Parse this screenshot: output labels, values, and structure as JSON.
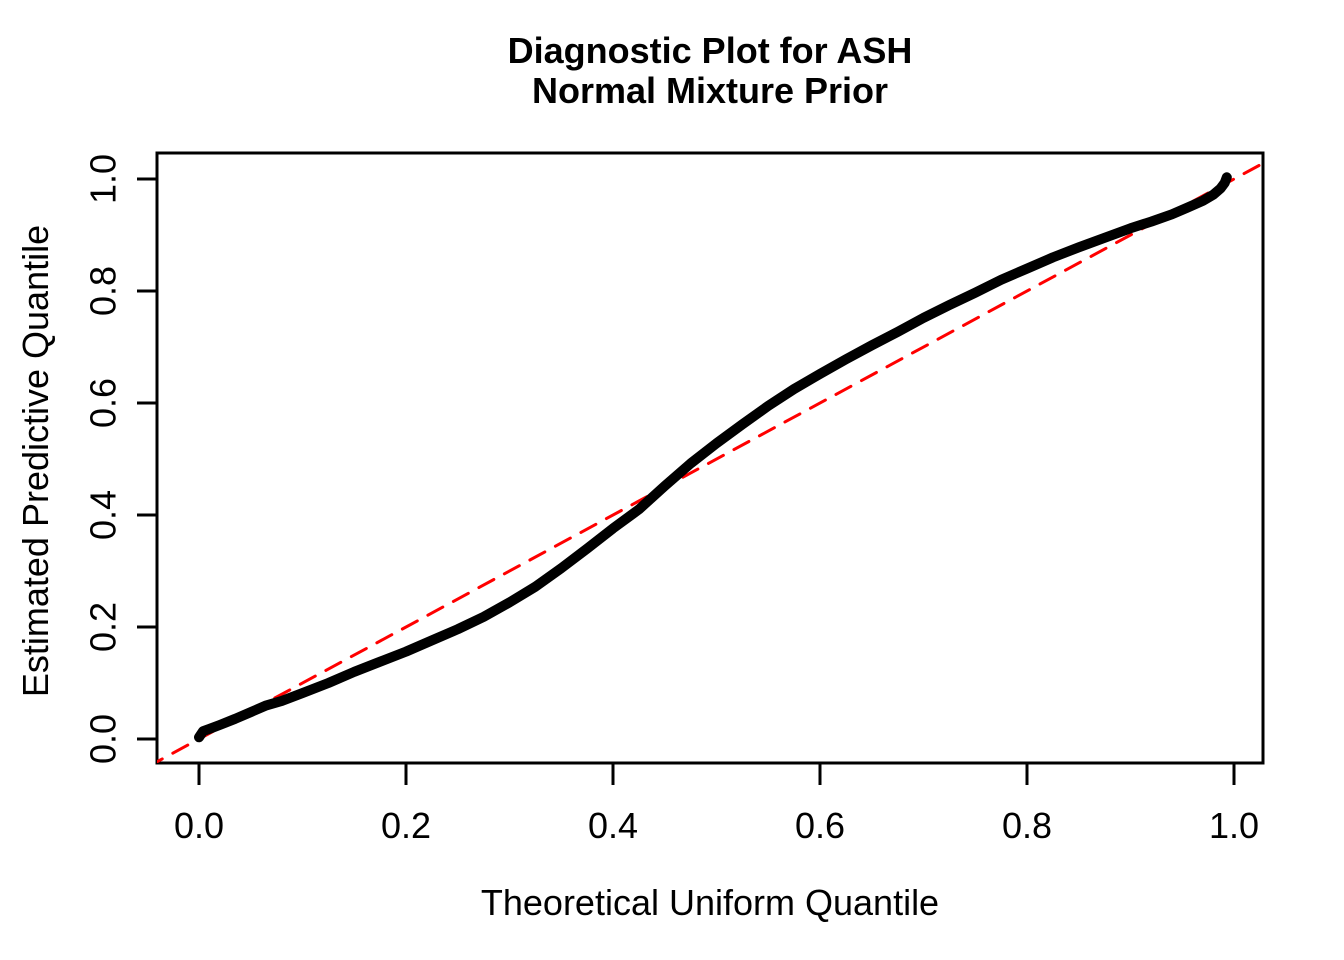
{
  "chart_data": {
    "type": "line",
    "title": "Diagnostic Plot for ASH",
    "subtitle": "Normal Mixture Prior",
    "xlabel": "Theoretical Uniform Quantile",
    "ylabel": "Estimated Predictive Quantile",
    "xlim": [
      -0.04,
      1.04
    ],
    "ylim": [
      -0.04,
      1.04
    ],
    "x_ticks": [
      "0.0",
      "0.2",
      "0.4",
      "0.6",
      "0.8",
      "1.0"
    ],
    "y_ticks": [
      "0.0",
      "0.2",
      "0.4",
      "0.6",
      "0.8",
      "1.0"
    ],
    "grid": false,
    "legend": false,
    "background": "#FFFFFF",
    "frame_color": "#000000",
    "series": [
      {
        "name": "estimated-vs-theoretical-quantile-curve",
        "color": "#000000",
        "dashed": false,
        "line_width": 10,
        "points": [
          [
            0.0,
            0.003
          ],
          [
            0.004,
            0.014
          ],
          [
            0.01,
            0.018
          ],
          [
            0.02,
            0.025
          ],
          [
            0.035,
            0.036
          ],
          [
            0.05,
            0.048
          ],
          [
            0.065,
            0.06
          ],
          [
            0.08,
            0.068
          ],
          [
            0.1,
            0.082
          ],
          [
            0.125,
            0.1
          ],
          [
            0.15,
            0.12
          ],
          [
            0.175,
            0.138
          ],
          [
            0.2,
            0.156
          ],
          [
            0.225,
            0.176
          ],
          [
            0.25,
            0.196
          ],
          [
            0.275,
            0.218
          ],
          [
            0.3,
            0.244
          ],
          [
            0.325,
            0.272
          ],
          [
            0.35,
            0.305
          ],
          [
            0.375,
            0.34
          ],
          [
            0.4,
            0.376
          ],
          [
            0.425,
            0.41
          ],
          [
            0.45,
            0.452
          ],
          [
            0.475,
            0.492
          ],
          [
            0.5,
            0.528
          ],
          [
            0.525,
            0.562
          ],
          [
            0.55,
            0.595
          ],
          [
            0.575,
            0.625
          ],
          [
            0.6,
            0.652
          ],
          [
            0.625,
            0.678
          ],
          [
            0.65,
            0.703
          ],
          [
            0.675,
            0.727
          ],
          [
            0.7,
            0.752
          ],
          [
            0.725,
            0.775
          ],
          [
            0.75,
            0.797
          ],
          [
            0.775,
            0.82
          ],
          [
            0.8,
            0.84
          ],
          [
            0.825,
            0.86
          ],
          [
            0.85,
            0.878
          ],
          [
            0.875,
            0.895
          ],
          [
            0.9,
            0.912
          ],
          [
            0.92,
            0.924
          ],
          [
            0.94,
            0.937
          ],
          [
            0.955,
            0.949
          ],
          [
            0.97,
            0.961
          ],
          [
            0.98,
            0.972
          ],
          [
            0.987,
            0.983
          ],
          [
            0.991,
            0.993
          ],
          [
            0.993,
            1.003
          ]
        ]
      },
      {
        "name": "reference-line-y-equals-x",
        "color": "#FF0000",
        "dashed": true,
        "line_width": 3,
        "points": [
          [
            -0.05,
            -0.05
          ],
          [
            1.05,
            1.05
          ]
        ]
      }
    ]
  }
}
